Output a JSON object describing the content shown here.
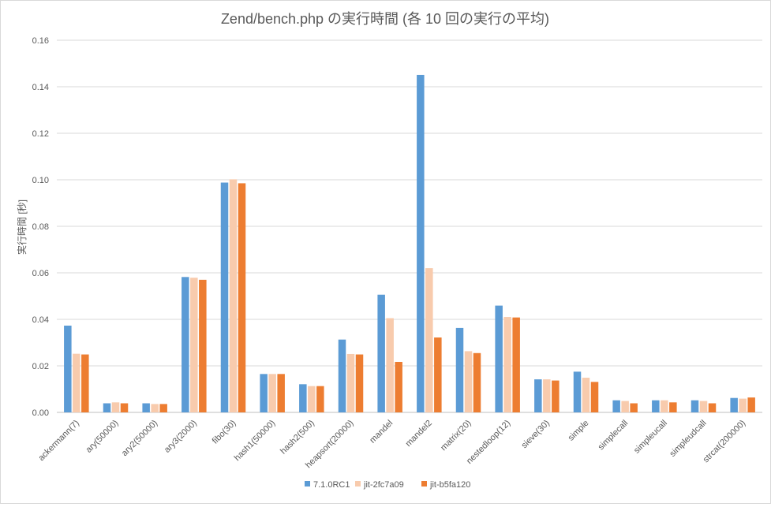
{
  "chart_data": {
    "type": "bar",
    "title": "Zend/bench.php の実行時間 (各 10 回の実行の平均)",
    "xlabel": "",
    "ylabel": "実行時間 [秒]",
    "ylim": [
      0,
      0.16
    ],
    "yticks": [
      "0.00",
      "0.02",
      "0.04",
      "0.06",
      "0.08",
      "0.10",
      "0.12",
      "0.14",
      "0.16"
    ],
    "grid": true,
    "legend_position": "bottom",
    "categories": [
      "ackermann(7)",
      "ary(50000)",
      "ary2(50000)",
      "ary3(2000)",
      "fibo(30)",
      "hash1(50000)",
      "hash2(500)",
      "heapsort(20000)",
      "mandel",
      "mandel2",
      "matrix(20)",
      "nestedloop(12)",
      "sieve(30)",
      "simple",
      "simplecall",
      "simpleucall",
      "simpleudcall",
      "strcat(200000)"
    ],
    "series": [
      {
        "name": "7.1.0RC1",
        "color": "#5b9bd5",
        "values": [
          0.0373,
          0.0039,
          0.0039,
          0.0582,
          0.0988,
          0.0165,
          0.0121,
          0.0313,
          0.0506,
          0.1451,
          0.0363,
          0.0459,
          0.0142,
          0.0175,
          0.0052,
          0.0052,
          0.0052,
          0.0062
        ]
      },
      {
        "name": "jit-2fc7a09",
        "color": "#f8cbad",
        "values": [
          0.0252,
          0.0043,
          0.0036,
          0.0579,
          0.1002,
          0.0165,
          0.0113,
          0.0251,
          0.0405,
          0.062,
          0.0263,
          0.041,
          0.0142,
          0.0149,
          0.0049,
          0.0052,
          0.0049,
          0.0059
        ]
      },
      {
        "name": "jit-b5fa120",
        "color": "#ed7d31",
        "values": [
          0.0249,
          0.0039,
          0.0036,
          0.057,
          0.0985,
          0.0165,
          0.0113,
          0.0249,
          0.0217,
          0.0322,
          0.0255,
          0.0408,
          0.0137,
          0.0131,
          0.0039,
          0.0043,
          0.0039,
          0.0064
        ]
      }
    ]
  }
}
